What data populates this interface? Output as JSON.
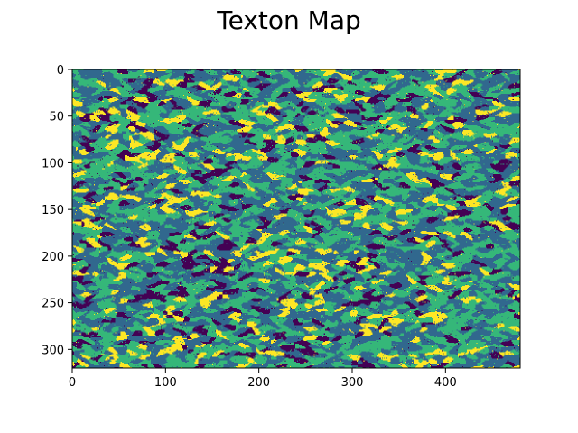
{
  "chart_data": {
    "type": "heatmap",
    "title": "Texton Map",
    "xlabel": "",
    "ylabel": "",
    "xlim": [
      0,
      480
    ],
    "ylim": [
      320,
      0
    ],
    "x_ticks": [
      0,
      100,
      200,
      300,
      400
    ],
    "y_ticks": [
      0,
      50,
      100,
      150,
      200,
      250,
      300
    ],
    "x_tick_labels": [
      "0",
      "100",
      "200",
      "300",
      "400"
    ],
    "y_tick_labels": [
      "0",
      "50",
      "100",
      "150",
      "200",
      "250",
      "300"
    ],
    "grid": false,
    "legend": "none",
    "colormap": "viridis",
    "palette": [
      "#440154",
      "#31688e",
      "#35b779",
      "#fde725"
    ],
    "cluster_weights": [
      0.12,
      0.4,
      0.36,
      0.12
    ],
    "grid_size": [
      480,
      320
    ]
  }
}
